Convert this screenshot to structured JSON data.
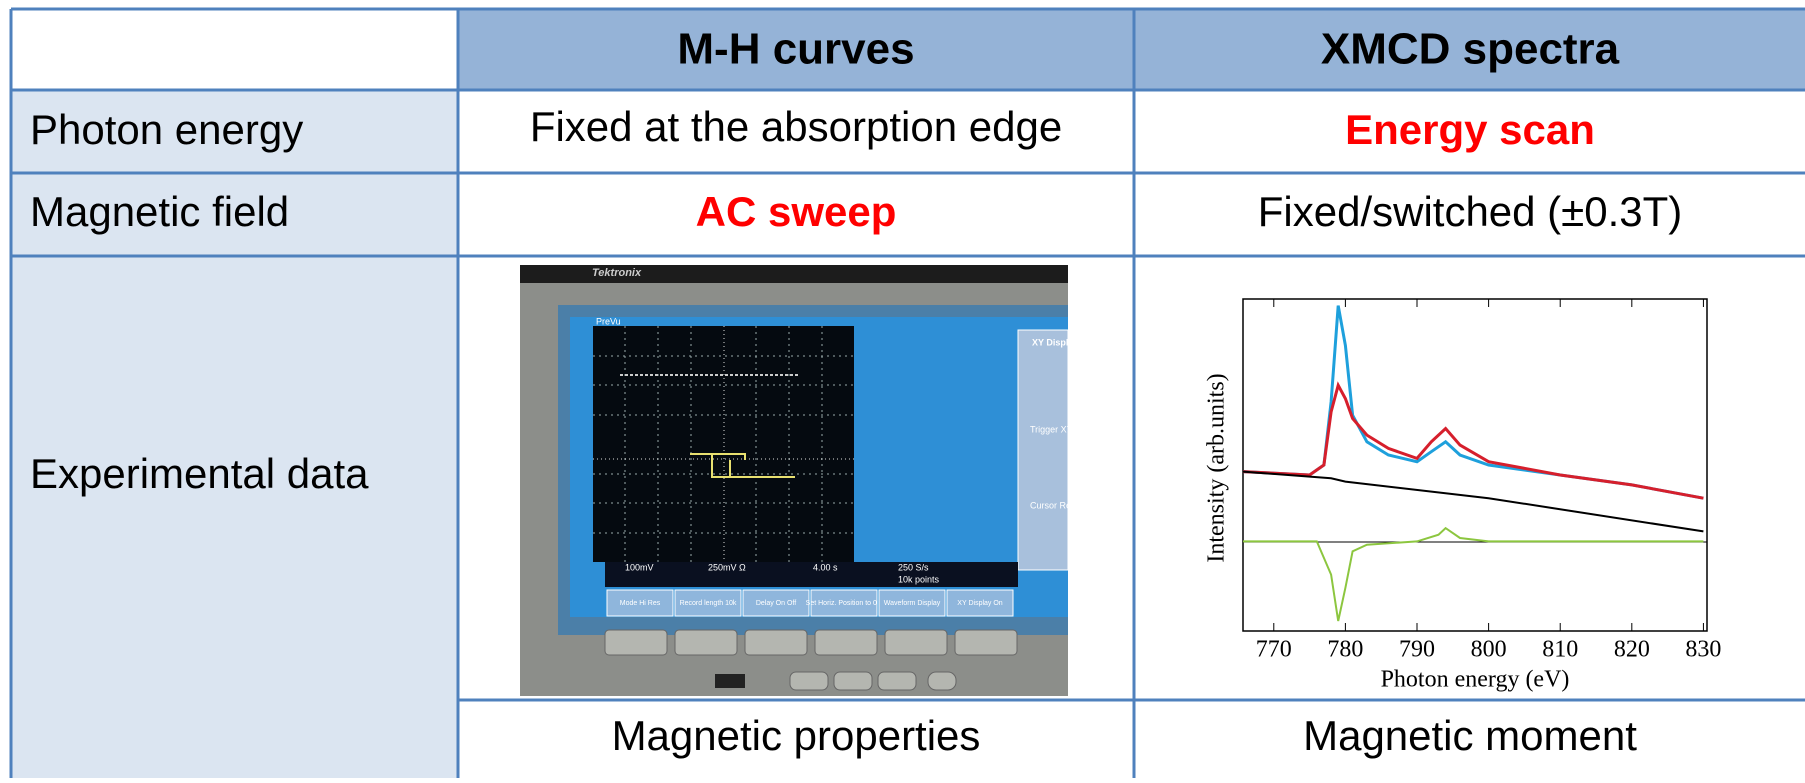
{
  "header": {
    "columns": [
      "M-H curves",
      "XMCD spectra"
    ]
  },
  "table": {
    "rows": [
      [
        "Photon energy",
        "Fixed at the absorption edge",
        "Energy scan"
      ],
      [
        "Magnetic field",
        "AC sweep",
        "Fixed/switched (±0.3T)"
      ],
      [
        "Experimental data"
      ],
      [
        "Magnetic properties",
        "Magnetic moment"
      ]
    ]
  },
  "scope": {
    "brand": "Tektronix",
    "screen_label": "PreVu",
    "readouts": [
      "100mV",
      "250mV Ω",
      "4.00 s",
      "250 S/s",
      "10k points"
    ],
    "menu": [
      "Mode Hi Res",
      "Record length 10k",
      "Delay On Off",
      "Set Horiz. Position to 0 s",
      "Waveform Display",
      "XY Display On"
    ],
    "side_menu": [
      "XY Display",
      "Trigger XY",
      "Cursor Readout"
    ]
  },
  "xmcd_plot": {
    "type": "line",
    "x_label": "Photon energy (eV)",
    "y_label": "Intensity (arb.units)",
    "xlim": [
      765.7,
      830.5
    ],
    "ylim": [
      0,
      100
    ],
    "xticks": [
      770,
      780,
      790,
      800,
      810,
      820,
      830
    ],
    "series": [
      {
        "color": "#1ea0dc",
        "x": [
          765.7,
          775,
          777,
          778,
          779,
          780,
          781,
          783,
          786,
          790,
          792,
          794,
          796,
          800,
          810,
          820,
          830
        ],
        "y": [
          48,
          47,
          50,
          69,
          98,
          86,
          65,
          57,
          53,
          51,
          54,
          57,
          53,
          50,
          47,
          44,
          40
        ]
      },
      {
        "color": "#d61f2c",
        "x": [
          765.7,
          775,
          777,
          778,
          779,
          780,
          781,
          783,
          786,
          790,
          792,
          794,
          796,
          800,
          810,
          820,
          830
        ],
        "y": [
          48,
          47,
          50,
          66,
          74,
          70,
          64,
          59,
          55,
          52,
          57,
          61,
          56,
          51,
          47,
          44,
          40
        ]
      },
      {
        "color": "#000000",
        "x": [
          765.7,
          778,
          780,
          800,
          830
        ],
        "y": [
          48,
          46,
          45,
          40,
          30
        ]
      },
      {
        "color": "#8cc63f",
        "x": [
          765.7,
          776,
          778,
          779,
          780,
          781,
          783,
          790,
          793,
          794,
          796,
          800,
          830
        ],
        "y": [
          27,
          27,
          17,
          3,
          13,
          24,
          26,
          27,
          29,
          31,
          28,
          27,
          27
        ]
      }
    ]
  }
}
